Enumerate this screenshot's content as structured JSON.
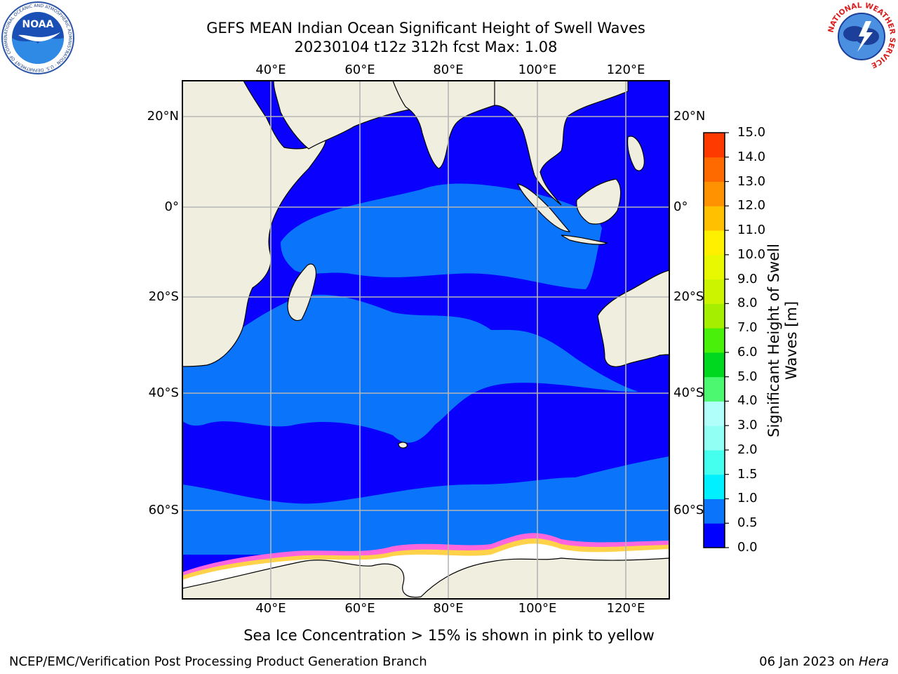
{
  "title_line1": "GEFS MEAN Indian Ocean Significant Height of Swell Waves",
  "title_line2": "20230104 t12z 312h fcst   Max: 1.08",
  "logo_left_text": "NOAA",
  "logo_left_ring": "NATIONAL OCEANIC AND ATMOSPHERIC ADMINISTRATION · U.S. DEPARTMENT OF COMMERCE",
  "logo_right_ring": "NATIONAL WEATHER SERVICE",
  "lon_labels": [
    "40°E",
    "60°E",
    "80°E",
    "100°E",
    "120°E"
  ],
  "lat_labels": [
    "20°N",
    "0°",
    "20°S",
    "40°S",
    "60°S"
  ],
  "map": {
    "lon_range": [
      20,
      130
    ],
    "lat_range": [
      -67,
      27
    ],
    "colors": {
      "land": "#efeedf",
      "ocean_low": "#0a00fe",
      "ocean_mid": "#0a74fb",
      "ice": "#ffffff",
      "ice_edge": "#ff66dd",
      "ice_edge_yellow": "#ffd24a",
      "grid": "#b5b5b5"
    }
  },
  "colorbar": {
    "title": "Significant Height of Swell Waves [m]",
    "ticks": [
      "0.0",
      "0.5",
      "1.0",
      "1.5",
      "2.0",
      "3.0",
      "4.0",
      "5.0",
      "6.0",
      "7.0",
      "8.0",
      "9.0",
      "10.0",
      "11.0",
      "12.0",
      "13.0",
      "14.0",
      "15.0"
    ],
    "colors": [
      "#0000ff",
      "#0a74fb",
      "#00f0ff",
      "#45ffee",
      "#92fff4",
      "#b0fffa",
      "#4cf870",
      "#00d71f",
      "#48f00a",
      "#a6ee00",
      "#ccf400",
      "#e8f800",
      "#fff000",
      "#ffc000",
      "#ff9200",
      "#ff6a00",
      "#ff3a00",
      "#ff0000"
    ]
  },
  "subtitle": "Sea Ice Concentration > 15% is shown in pink to yellow",
  "footer_left": "NCEP/EMC/Verification Post Processing Product Generation Branch",
  "footer_right_prefix": "06 Jan 2023 on ",
  "footer_right_host": "Hera"
}
